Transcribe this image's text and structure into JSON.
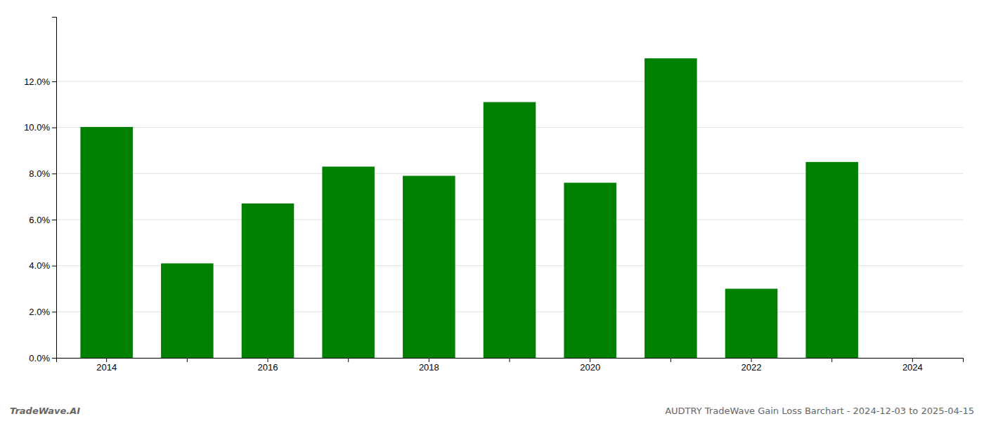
{
  "chart_data": {
    "type": "bar",
    "title": "AUDTRY TradeWave Gain Loss Barchart - 2024-12-03 to 2025-04-15",
    "annotations": [
      "TradeWave.AI"
    ],
    "categories": [
      "2014",
      null,
      "2016",
      null,
      "2018",
      null,
      "2020",
      null,
      "2022",
      null,
      "2024"
    ],
    "values": [
      0.1002,
      0.041,
      0.067,
      0.083,
      0.079,
      0.111,
      0.076,
      0.13,
      0.03,
      0.085,
      null
    ],
    "color": "#008000",
    "ylim": [
      0,
      0.148
    ],
    "yticks": [
      {
        "value": 0.0,
        "label": "0.0%"
      },
      {
        "value": 0.02,
        "label": "2.0%"
      },
      {
        "value": 0.04,
        "label": "4.0%"
      },
      {
        "value": 0.06,
        "label": "6.0%"
      },
      {
        "value": 0.08,
        "label": "8.0%"
      },
      {
        "value": 0.1,
        "label": "10.0%"
      },
      {
        "value": 0.12,
        "label": "12.0%"
      }
    ],
    "grid": true
  }
}
